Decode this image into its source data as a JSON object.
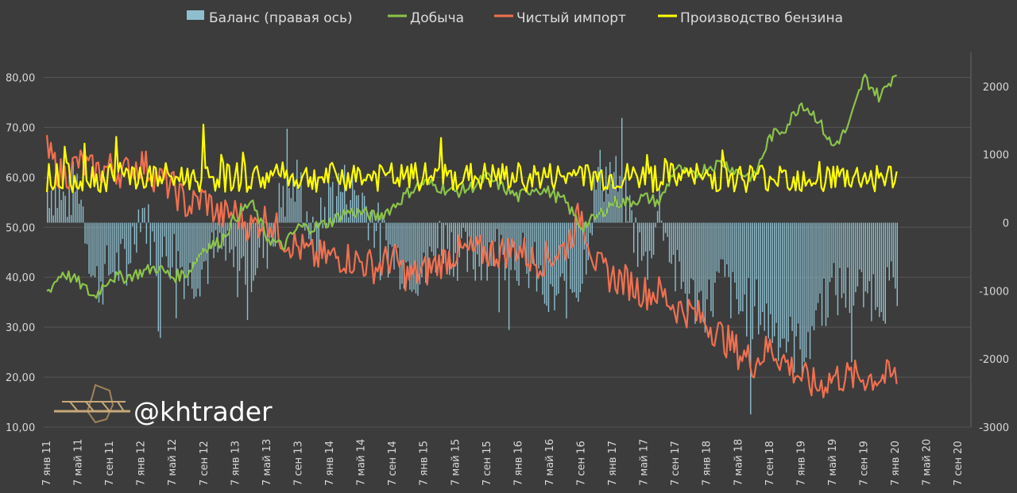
{
  "chart_data": {
    "type": "bar+line",
    "title": "",
    "legend": [
      {
        "name": "Баланс (правая ось)",
        "kind": "bar",
        "color": "#8fbfcf"
      },
      {
        "name": "Добыча",
        "kind": "line",
        "color": "#8bc34a"
      },
      {
        "name": "Чистый импорт",
        "kind": "line",
        "color": "#f07050"
      },
      {
        "name": "Производство бензина",
        "kind": "line",
        "color": "#ffff00"
      }
    ],
    "left_axis": {
      "min": 10,
      "max": 85,
      "ticks": [
        "10,00",
        "20,00",
        "30,00",
        "40,00",
        "50,00",
        "60,00",
        "70,00",
        "80,00"
      ],
      "values": [
        10,
        20,
        30,
        40,
        50,
        60,
        70,
        80
      ]
    },
    "right_axis": {
      "min": -3000,
      "max": 2500,
      "ticks": [
        "-3000",
        "-2000",
        "-1000",
        "0",
        "1000",
        "2000"
      ],
      "values": [
        -3000,
        -2000,
        -1000,
        0,
        1000,
        2000
      ]
    },
    "x_labels": [
      "7 янв 11",
      "7 май 11",
      "7 сен 11",
      "7 янв 12",
      "7 май 12",
      "7 сен 12",
      "7 янв 13",
      "7 май 13",
      "7 сен 13",
      "7 янв 14",
      "7 май 14",
      "7 сен 14",
      "7 янв 15",
      "7 май 15",
      "7 сен 15",
      "7 янв 16",
      "7 май 16",
      "7 сен 16",
      "7 янв 17",
      "7 май 17",
      "7 сен 17",
      "7 янв 18",
      "7 май 18",
      "7 сен 18",
      "7 янв 19",
      "7 май 19",
      "7 сен 19",
      "7 янв 20",
      "7 май 20",
      "7 сен 20"
    ],
    "series_anchors": {
      "Добыча": [
        [
          0,
          37
        ],
        [
          0.5,
          41
        ],
        [
          1,
          39
        ],
        [
          1.5,
          36
        ],
        [
          2,
          40
        ],
        [
          2.5,
          40
        ],
        [
          3,
          41
        ],
        [
          3.5,
          42
        ],
        [
          4,
          40
        ],
        [
          4.5,
          41
        ],
        [
          5,
          46
        ],
        [
          5.5,
          47
        ],
        [
          6,
          52
        ],
        [
          6.5,
          55
        ],
        [
          7,
          48
        ],
        [
          7.5,
          46
        ],
        [
          8,
          50
        ],
        [
          8.5,
          50
        ],
        [
          9,
          51
        ],
        [
          9.5,
          53
        ],
        [
          10,
          53
        ],
        [
          10.5,
          52
        ],
        [
          11,
          54
        ],
        [
          11.5,
          57
        ],
        [
          12,
          59
        ],
        [
          12.5,
          58
        ],
        [
          13,
          57
        ],
        [
          13.5,
          58
        ],
        [
          14,
          60
        ],
        [
          14.5,
          58
        ],
        [
          15,
          56
        ],
        [
          15.5,
          58
        ],
        [
          16,
          57
        ],
        [
          16.5,
          55
        ],
        [
          17,
          50
        ],
        [
          17.5,
          52
        ],
        [
          18,
          55
        ],
        [
          18.5,
          55
        ],
        [
          19,
          56
        ],
        [
          19.5,
          55
        ],
        [
          20,
          62
        ],
        [
          20.5,
          60
        ],
        [
          21,
          62
        ],
        [
          21.5,
          63
        ],
        [
          22,
          61
        ],
        [
          22.5,
          60
        ],
        [
          23,
          68
        ],
        [
          23.5,
          70
        ],
        [
          24,
          75
        ],
        [
          24.5,
          72
        ],
        [
          25,
          66
        ],
        [
          25.5,
          70
        ],
        [
          26,
          80
        ],
        [
          26.5,
          76
        ],
        [
          27,
          81
        ]
      ],
      "Чистый импорт": [
        [
          0,
          65
        ],
        [
          0.5,
          60
        ],
        [
          1,
          63
        ],
        [
          1.5,
          61
        ],
        [
          2,
          62
        ],
        [
          2.5,
          61
        ],
        [
          3,
          63
        ],
        [
          3.5,
          60
        ],
        [
          4,
          58
        ],
        [
          4.5,
          54
        ],
        [
          5,
          56
        ],
        [
          5.5,
          52
        ],
        [
          6,
          53
        ],
        [
          6.5,
          50
        ],
        [
          7,
          52
        ],
        [
          7.5,
          48
        ],
        [
          8,
          46
        ],
        [
          8.5,
          44
        ],
        [
          9,
          44
        ],
        [
          9.5,
          44
        ],
        [
          10,
          43
        ],
        [
          10.5,
          42
        ],
        [
          11,
          44
        ],
        [
          11.5,
          40
        ],
        [
          12,
          41
        ],
        [
          12.5,
          43
        ],
        [
          13,
          45
        ],
        [
          13.5,
          45
        ],
        [
          14,
          45
        ],
        [
          14.5,
          45
        ],
        [
          15,
          46
        ],
        [
          15.5,
          43
        ],
        [
          16,
          44
        ],
        [
          16.5,
          46
        ],
        [
          17,
          53
        ],
        [
          17.5,
          42
        ],
        [
          18,
          40
        ],
        [
          18.5,
          39
        ],
        [
          19,
          37
        ],
        [
          19.5,
          37
        ],
        [
          20,
          34
        ],
        [
          20.5,
          33
        ],
        [
          21,
          31
        ],
        [
          21.5,
          28
        ],
        [
          22,
          25
        ],
        [
          22.5,
          23
        ],
        [
          23,
          26
        ],
        [
          23.5,
          23
        ],
        [
          24,
          20
        ],
        [
          24.5,
          18
        ],
        [
          25,
          20
        ]
      ]
    },
    "balance_anchors": [
      [
        0,
        600
      ],
      [
        0.5,
        300
      ],
      [
        1,
        600
      ],
      [
        1.5,
        -900
      ],
      [
        2,
        -700
      ],
      [
        2.5,
        -600
      ],
      [
        3,
        300
      ],
      [
        3.5,
        -600
      ],
      [
        4,
        -400
      ],
      [
        4.5,
        -800
      ],
      [
        5,
        -600
      ],
      [
        5.5,
        -400
      ],
      [
        6,
        -700
      ],
      [
        6.5,
        -600
      ],
      [
        7,
        -300
      ],
      [
        7.5,
        400
      ],
      [
        8,
        600
      ],
      [
        8.5,
        -400
      ],
      [
        9,
        500
      ],
      [
        9.5,
        500
      ],
      [
        10,
        400
      ],
      [
        10.5,
        -100
      ],
      [
        11,
        -500
      ],
      [
        11.5,
        -600
      ],
      [
        12,
        -800
      ],
      [
        12.5,
        -200
      ],
      [
        13,
        -400
      ],
      [
        13.5,
        -600
      ],
      [
        14,
        -400
      ],
      [
        14.5,
        -400
      ],
      [
        15,
        -500
      ],
      [
        15.5,
        -700
      ],
      [
        16,
        -1200
      ],
      [
        16.5,
        -1000
      ],
      [
        17,
        -800
      ],
      [
        17.5,
        700
      ],
      [
        18,
        700
      ],
      [
        18.5,
        200
      ],
      [
        19,
        -700
      ],
      [
        19.5,
        300
      ],
      [
        20,
        -800
      ],
      [
        20.5,
        -1100
      ],
      [
        21,
        -1200
      ],
      [
        21.5,
        -800
      ],
      [
        22,
        -1300
      ],
      [
        22.5,
        -1200
      ],
      [
        23,
        -1500
      ],
      [
        23.5,
        -1700
      ],
      [
        24,
        -1900
      ],
      [
        24.5,
        -1200
      ],
      [
        25,
        -1000
      ]
    ],
    "gasoline_level": 60
  },
  "watermark": {
    "handle": "@khtrader"
  }
}
